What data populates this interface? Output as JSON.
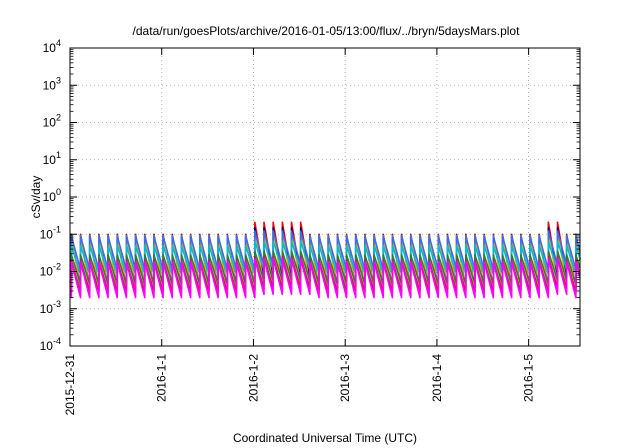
{
  "chart_data": {
    "type": "line",
    "title": "/data/run/goesPlots/archive/2016-01-05/13:00/flux/../bryn/5daysMars.plot",
    "xlabel": "Coordinated Universal Time (UTC)",
    "ylabel": "cSv/day",
    "yscale": "log",
    "ylim": [
      0.0001,
      10000
    ],
    "xlim_days_from_2015_12_31": [
      0,
      5.56
    ],
    "grid": true,
    "legend": "none",
    "x_ticks": [
      "2015-12-31",
      "2016-1-1",
      "2016-1-2",
      "2016-1-3",
      "2016-1-4",
      "2016-1-5"
    ],
    "y_ticks": [
      {
        "base": "10",
        "exp": "-4"
      },
      {
        "base": "10",
        "exp": "-3"
      },
      {
        "base": "10",
        "exp": "-2"
      },
      {
        "base": "10",
        "exp": "-1"
      },
      {
        "base": "10",
        "exp": "0"
      },
      {
        "base": "10",
        "exp": "1"
      },
      {
        "base": "10",
        "exp": "2"
      },
      {
        "base": "10",
        "exp": "3"
      },
      {
        "base": "10",
        "exp": "4"
      }
    ],
    "sawtooth_period_hours": 2.4,
    "series": [
      {
        "color": "#ff0000",
        "peak": 0.1,
        "trough": 0.0035,
        "burst_peak": 0.21
      },
      {
        "color": "#00008b",
        "peak": 0.095,
        "trough": 0.0033,
        "burst_peak": 0.15
      },
      {
        "color": "#ffa500",
        "peak": 0.092,
        "trough": 0.0032,
        "burst_peak": 0.12
      },
      {
        "color": "#3a6fe8",
        "peak": 0.09,
        "trough": 0.011,
        "burst_peak": 0.12
      },
      {
        "color": "#00bcd4",
        "peak": 0.05,
        "trough": 0.0085,
        "burst_peak": 0.065
      },
      {
        "color": "#2e7d32",
        "peak": 0.028,
        "trough": 0.0045,
        "burst_peak": 0.035
      },
      {
        "color": "#c2185b",
        "peak": 0.02,
        "trough": 0.0028,
        "burst_peak": 0.025
      },
      {
        "color": "#ff00ff",
        "peak": 0.018,
        "trough": 0.002,
        "burst_peak": 0.022
      }
    ]
  }
}
